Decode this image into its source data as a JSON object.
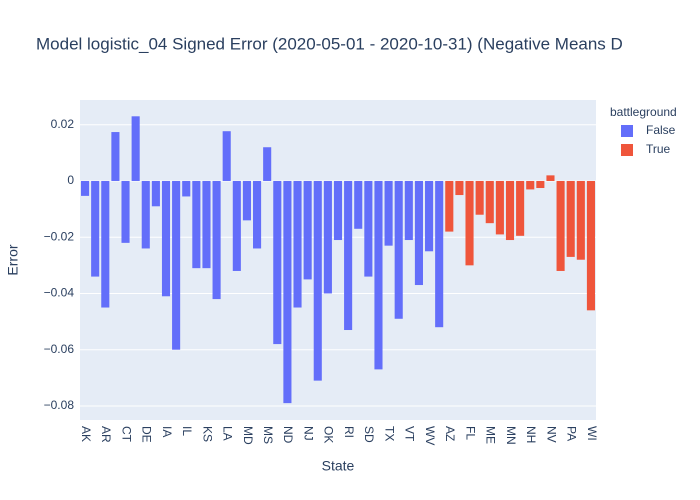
{
  "chart_data": {
    "type": "bar",
    "title": "Model logistic_04 Signed Error (2020-05-01 - 2020-10-31) (Negative Means D",
    "x_label": "State",
    "y_label": "Error",
    "legend_title": "battleground",
    "categories": [
      "AK",
      null,
      "AR",
      null,
      "CT",
      null,
      "DE",
      null,
      "IA",
      null,
      "IL",
      null,
      "KS",
      null,
      "LA",
      null,
      "MD",
      null,
      "MS",
      null,
      "ND",
      null,
      "NJ",
      null,
      "OK",
      null,
      "RI",
      null,
      "SD",
      null,
      "TX",
      null,
      "VT",
      null,
      "WV",
      null,
      "AZ",
      null,
      "FL",
      null,
      "ME",
      null,
      "MN",
      null,
      "NH",
      null,
      "NV",
      null,
      "PA",
      null,
      "WI"
    ],
    "series": [
      {
        "name": "False",
        "color": "#636efa",
        "values": [
          -0.0053,
          -0.034,
          -0.045,
          0.0174,
          -0.022,
          0.023,
          -0.024,
          -0.009,
          -0.041,
          -0.06,
          -0.0055,
          -0.031,
          -0.031,
          -0.042,
          0.0177,
          -0.032,
          -0.014,
          -0.024,
          0.012,
          -0.058,
          -0.079,
          -0.045,
          -0.035,
          -0.071,
          -0.04,
          -0.021,
          -0.053,
          -0.017,
          -0.034,
          -0.067,
          -0.023,
          -0.049,
          -0.021,
          -0.037,
          -0.025,
          -0.052,
          null,
          null,
          null,
          null,
          null,
          null,
          null,
          null,
          null,
          null,
          null,
          null,
          null,
          null,
          null
        ]
      },
      {
        "name": "True",
        "color": "#ef553b",
        "values": [
          null,
          null,
          null,
          null,
          null,
          null,
          null,
          null,
          null,
          null,
          null,
          null,
          null,
          null,
          null,
          null,
          null,
          null,
          null,
          null,
          null,
          null,
          null,
          null,
          null,
          null,
          null,
          null,
          null,
          null,
          null,
          null,
          null,
          null,
          null,
          null,
          -0.018,
          -0.005,
          -0.03,
          -0.012,
          -0.015,
          -0.019,
          -0.021,
          -0.0195,
          -0.003,
          -0.0025,
          0.002,
          -0.032,
          -0.027,
          -0.028,
          -0.046
        ]
      }
    ],
    "ylim": [
      -0.085,
      0.0288
    ],
    "yticks": [
      {
        "value": -0.08,
        "label": "−0.08"
      },
      {
        "value": -0.06,
        "label": "−0.06"
      },
      {
        "value": -0.04,
        "label": "−0.04"
      },
      {
        "value": -0.02,
        "label": "−0.02"
      },
      0,
      {
        "value": 0.02,
        "label": "0.02"
      }
    ],
    "grid": true,
    "legend_position": "right"
  }
}
